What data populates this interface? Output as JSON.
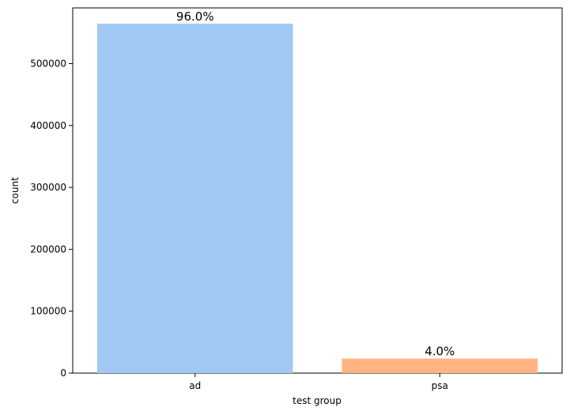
{
  "chart_data": {
    "type": "bar",
    "title": "",
    "xlabel": "test group",
    "ylabel": "count",
    "categories": [
      "ad",
      "psa"
    ],
    "values": [
      564577,
      23524
    ],
    "data_labels": [
      "96.0%",
      "4.0%"
    ],
    "colors": [
      "#a1c9f4",
      "#ffb482"
    ],
    "ylim": [
      0,
      590000
    ],
    "yticks": [
      0,
      100000,
      200000,
      300000,
      400000,
      500000
    ],
    "ytick_labels": [
      "0",
      "100000",
      "200000",
      "300000",
      "400000",
      "500000"
    ],
    "grid": false,
    "legend": "none"
  }
}
